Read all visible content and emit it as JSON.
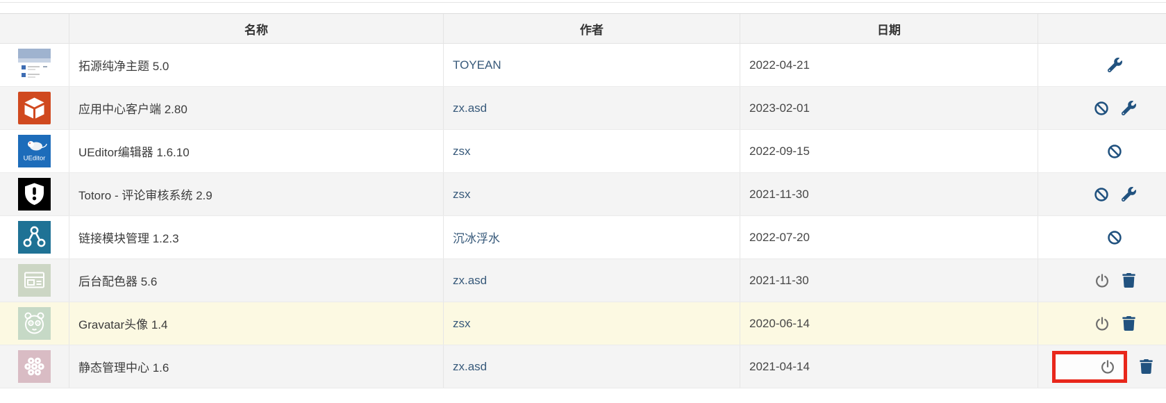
{
  "table": {
    "columns": [
      {
        "key": "icon",
        "label": ""
      },
      {
        "key": "name",
        "label": "名称"
      },
      {
        "key": "author",
        "label": "作者"
      },
      {
        "key": "date",
        "label": "日期"
      },
      {
        "key": "actions",
        "label": ""
      }
    ],
    "rows": [
      {
        "name": "拓源纯净主题 5.0",
        "author": "TOYEAN",
        "date": "2022-04-21",
        "icon": {
          "name": "theme-screenshot-thumbnail"
        },
        "actions": [
          "manage"
        ]
      },
      {
        "name": "应用中心客户端 2.80",
        "author": "zx.asd",
        "date": "2023-02-01",
        "icon": {
          "name": "open-box",
          "bg": "#d0491f"
        },
        "actions": [
          "disable",
          "manage"
        ]
      },
      {
        "name": "UEditor编辑器 1.6.10",
        "author": "zsx",
        "date": "2022-09-15",
        "icon": {
          "name": "ueditor-logo",
          "bg": "#1d6cba",
          "text": "UEditor"
        },
        "actions": [
          "disable"
        ]
      },
      {
        "name": "Totoro - 评论审核系统 2.9",
        "author": "zsx",
        "date": "2021-11-30",
        "icon": {
          "name": "shield-exclamation",
          "bg": "#000000"
        },
        "actions": [
          "disable",
          "manage"
        ]
      },
      {
        "name": "链接模块管理 1.2.3",
        "author": "沉冰浮水",
        "date": "2022-07-20",
        "icon": {
          "name": "share-nodes",
          "bg": "#1f7295"
        },
        "actions": [
          "disable"
        ]
      },
      {
        "name": "后台配色器 5.6",
        "author": "zx.asd",
        "date": "2021-11-30",
        "icon": {
          "name": "browser-window",
          "bg": "#ccd6c4"
        },
        "actions": [
          "enable",
          "delete"
        ]
      },
      {
        "name": "Gravatar头像 1.4",
        "author": "zsx",
        "date": "2020-06-14",
        "icon": {
          "name": "panda-face",
          "bg": "#c6d9c6"
        },
        "actions": [
          "enable",
          "delete"
        ],
        "highlight": "yellow"
      },
      {
        "name": "静态管理中心 1.6",
        "author": "zx.asd",
        "date": "2021-04-14",
        "icon": {
          "name": "dot-flower",
          "bg": "#d9bcc4"
        },
        "actions": [
          "enable",
          "delete"
        ],
        "annotation": {
          "type": "red-box",
          "on_action": "enable"
        }
      }
    ]
  },
  "colors": {
    "action_blue": "#21527f",
    "power_gray": "#6e6e6e",
    "annotation_red": "#e8271b",
    "header_bg": "#f4f4f4",
    "row_stripe": "#f4f4f4",
    "row_highlight": "#fcf9e2",
    "link_blue": "#37597a"
  }
}
